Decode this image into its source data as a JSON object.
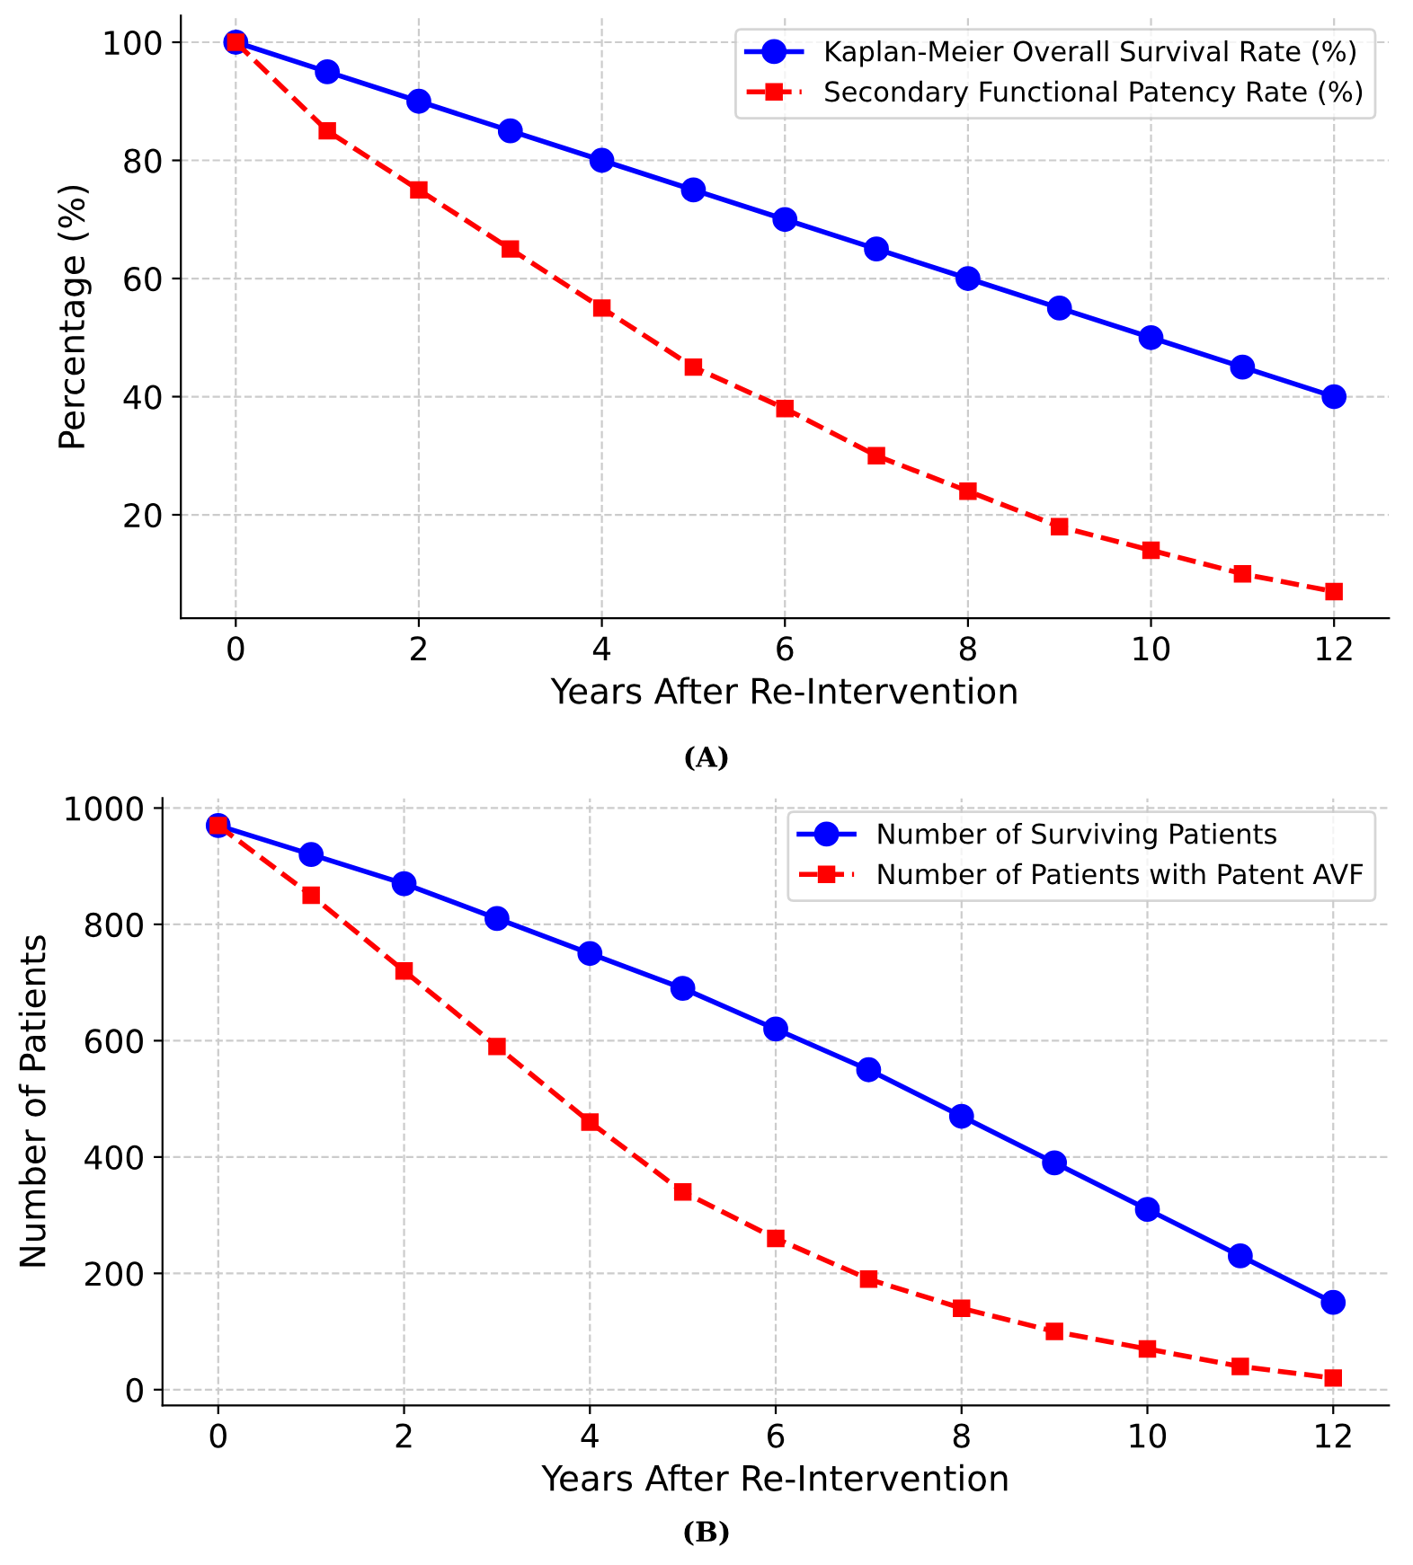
{
  "chart_data": [
    {
      "type": "line",
      "xlabel": "Years After Re-Intervention",
      "ylabel": "Percentage (%)",
      "x": [
        0,
        1,
        2,
        3,
        4,
        5,
        6,
        7,
        8,
        9,
        10,
        11,
        12
      ],
      "series": [
        {
          "name": "Kaplan-Meier Overall Survival Rate (%)",
          "color": "#0000ff",
          "values": [
            100,
            95,
            90,
            85,
            80,
            75,
            70,
            65,
            60,
            55,
            50,
            45,
            40
          ],
          "marker": "circle",
          "line_style": "solid"
        },
        {
          "name": "Secondary Functional Patency Rate (%)",
          "color": "#ff0000",
          "values": [
            100,
            85,
            75,
            65,
            55,
            45,
            38,
            30,
            24,
            18,
            14,
            10,
            7
          ],
          "marker": "square",
          "line_style": "dashed"
        }
      ],
      "xlim": [
        -0.6,
        12.6
      ],
      "xticks": [
        0,
        2,
        4,
        6,
        8,
        10,
        12
      ],
      "ylim": [
        2.5,
        104.5
      ],
      "yticks": [
        20,
        40,
        60,
        80,
        100
      ],
      "grid": true,
      "legend": "top right",
      "annotations": [
        "(A)"
      ]
    },
    {
      "type": "line",
      "xlabel": "Years After Re-Intervention",
      "ylabel": "Number of Patients",
      "x": [
        0,
        1,
        2,
        3,
        4,
        5,
        6,
        7,
        8,
        9,
        10,
        11,
        12
      ],
      "series": [
        {
          "name": "Number of Surviving Patients",
          "color": "#0000ff",
          "values": [
            970,
            920,
            870,
            810,
            750,
            690,
            620,
            550,
            470,
            390,
            310,
            230,
            150
          ],
          "marker": "circle",
          "line_style": "solid"
        },
        {
          "name": "Number of Patients with Patent AVF",
          "color": "#ff0000",
          "values": [
            970,
            850,
            720,
            590,
            460,
            340,
            260,
            190,
            140,
            100,
            70,
            40,
            20
          ],
          "marker": "square",
          "line_style": "dashed"
        }
      ],
      "xlim": [
        -0.6,
        12.6
      ],
      "xticks": [
        0,
        2,
        4,
        6,
        8,
        10,
        12
      ],
      "ylim": [
        -27,
        1017
      ],
      "yticks": [
        0,
        200,
        400,
        600,
        800,
        1000
      ],
      "grid": true,
      "legend": "top right",
      "annotations": [
        "(B)"
      ]
    }
  ]
}
